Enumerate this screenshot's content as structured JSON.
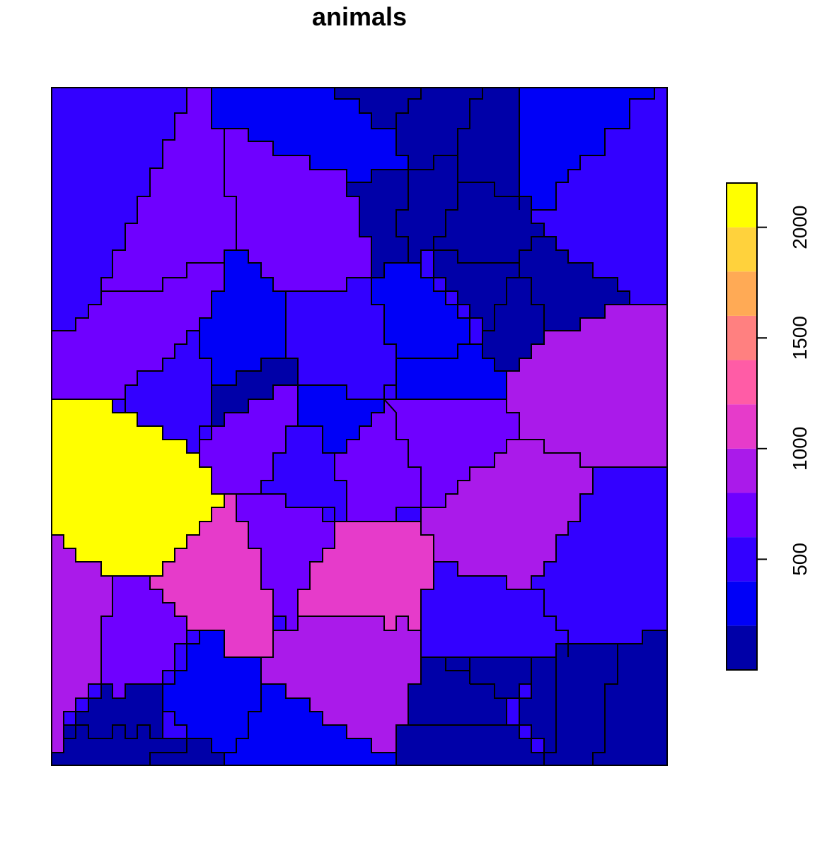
{
  "map": {
    "title": "animals",
    "legend": {
      "placement": "right",
      "breaks": [
        0,
        200,
        400,
        600,
        800,
        1000,
        1200,
        1400,
        1600,
        1800,
        2000,
        2200
      ],
      "colors": [
        "#0000a8",
        "#0000f7",
        "#3300ff",
        "#6f00ff",
        "#aa1aea",
        "#e63bca",
        "#ff5ca6",
        "#ff8080",
        "#ffaa55",
        "#ffd23c",
        "#ffff00"
      ],
      "ticks": [
        500,
        1000,
        1500,
        2000
      ],
      "tick_labels": [
        "500",
        "1000",
        "1500",
        "2000"
      ]
    }
  }
}
